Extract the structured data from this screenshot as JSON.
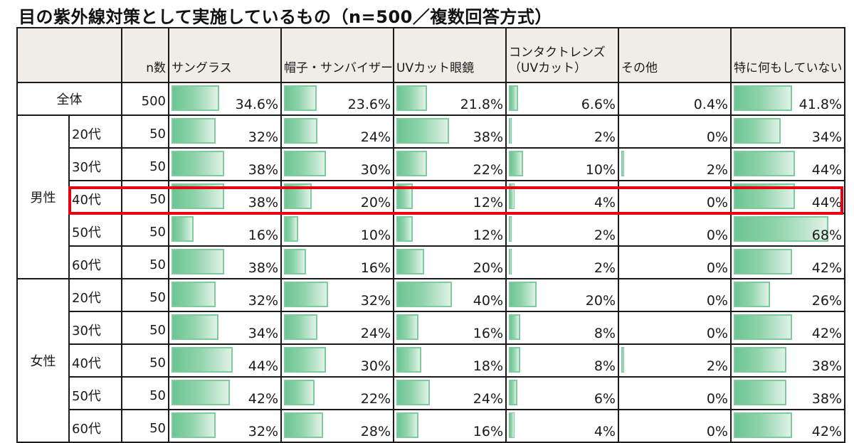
{
  "title": "目の紫外線対策として実施しているもの（n=500／複数回答方式）",
  "header": {
    "n_label": "n数",
    "columns": [
      "サングラス",
      "帽子・サンバイザー",
      "UVカット眼鏡",
      "コンタクトレンズ\n（UVカット）",
      "その他",
      "特に何もしていない"
    ],
    "column_lines": [
      [
        "サングラス"
      ],
      [
        "帽子・サンバイザー"
      ],
      [
        "UVカット眼鏡"
      ],
      [
        "コンタクトレンズ",
        "（UVカット）"
      ],
      [
        "その他"
      ],
      [
        "特に何もしていない"
      ]
    ]
  },
  "total": {
    "label": "全体",
    "n": "500",
    "values": [
      "34.6%",
      "23.6%",
      "21.8%",
      "6.6%",
      "0.4%",
      "41.8%"
    ],
    "numeric": [
      34.6,
      23.6,
      21.8,
      6.6,
      0.4,
      41.8
    ]
  },
  "groups": [
    {
      "label": "男性",
      "rows": [
        {
          "age": "20代",
          "n": "50",
          "values": [
            "32%",
            "24%",
            "38%",
            "2%",
            "0%",
            "34%"
          ],
          "numeric": [
            32,
            24,
            38,
            2,
            0,
            34
          ]
        },
        {
          "age": "30代",
          "n": "50",
          "values": [
            "38%",
            "30%",
            "22%",
            "10%",
            "2%",
            "44%"
          ],
          "numeric": [
            38,
            30,
            22,
            10,
            2,
            44
          ]
        },
        {
          "age": "40代",
          "n": "50",
          "values": [
            "38%",
            "20%",
            "12%",
            "4%",
            "0%",
            "44%"
          ],
          "numeric": [
            38,
            20,
            12,
            4,
            0,
            44
          ]
        },
        {
          "age": "50代",
          "n": "50",
          "values": [
            "16%",
            "10%",
            "12%",
            "2%",
            "0%",
            "68%"
          ],
          "numeric": [
            16,
            10,
            12,
            2,
            0,
            68
          ],
          "highlighted": true
        },
        {
          "age": "60代",
          "n": "50",
          "values": [
            "38%",
            "16%",
            "20%",
            "2%",
            "0%",
            "42%"
          ],
          "numeric": [
            38,
            16,
            20,
            2,
            0,
            42
          ]
        }
      ]
    },
    {
      "label": "女性",
      "rows": [
        {
          "age": "20代",
          "n": "50",
          "values": [
            "32%",
            "32%",
            "40%",
            "20%",
            "0%",
            "26%"
          ],
          "numeric": [
            32,
            32,
            40,
            20,
            0,
            26
          ]
        },
        {
          "age": "30代",
          "n": "50",
          "values": [
            "34%",
            "24%",
            "16%",
            "8%",
            "0%",
            "42%"
          ],
          "numeric": [
            34,
            24,
            16,
            8,
            0,
            42
          ]
        },
        {
          "age": "40代",
          "n": "50",
          "values": [
            "44%",
            "30%",
            "18%",
            "8%",
            "2%",
            "38%"
          ],
          "numeric": [
            44,
            30,
            18,
            8,
            2,
            38
          ]
        },
        {
          "age": "50代",
          "n": "50",
          "values": [
            "42%",
            "22%",
            "24%",
            "6%",
            "0%",
            "38%"
          ],
          "numeric": [
            42,
            22,
            24,
            6,
            0,
            38
          ]
        },
        {
          "age": "60代",
          "n": "50",
          "values": [
            "32%",
            "28%",
            "16%",
            "4%",
            "0%",
            "42%"
          ],
          "numeric": [
            32,
            28,
            16,
            4,
            0,
            42
          ]
        }
      ]
    }
  ],
  "colors": {
    "bar_start": "#6cc593",
    "bar_end": "#dff2e6",
    "bar_border": "#7ecb9f",
    "header_bg": "#f0ede7",
    "highlight": "#e60012",
    "grid": "#1a1a1a"
  },
  "chart_data": {
    "type": "table",
    "title": "目の紫外線対策として実施しているもの（n=500／複数回答方式）",
    "xlabel": "",
    "ylabel": "",
    "unit": "%",
    "columns": [
      "サングラス",
      "帽子・サンバイザー",
      "UVカット眼鏡",
      "コンタクトレンズ（UVカット）",
      "その他",
      "特に何もしていない"
    ],
    "categories": [
      "全体",
      "男性20代",
      "男性30代",
      "男性40代",
      "男性50代",
      "男性60代",
      "女性20代",
      "女性30代",
      "女性40代",
      "女性50代",
      "女性60代"
    ],
    "n": [
      500,
      50,
      50,
      50,
      50,
      50,
      50,
      50,
      50,
      50,
      50
    ],
    "series": [
      {
        "name": "サングラス",
        "values": [
          34.6,
          32,
          38,
          38,
          16,
          38,
          32,
          34,
          44,
          42,
          32
        ]
      },
      {
        "name": "帽子・サンバイザー",
        "values": [
          23.6,
          24,
          30,
          20,
          10,
          16,
          32,
          24,
          30,
          22,
          28
        ]
      },
      {
        "name": "UVカット眼鏡",
        "values": [
          21.8,
          38,
          22,
          12,
          12,
          20,
          40,
          16,
          18,
          24,
          16
        ]
      },
      {
        "name": "コンタクトレンズ（UVカット）",
        "values": [
          6.6,
          2,
          10,
          4,
          2,
          2,
          20,
          8,
          8,
          6,
          4
        ]
      },
      {
        "name": "その他",
        "values": [
          0.4,
          0,
          2,
          0,
          0,
          0,
          0,
          0,
          2,
          0,
          0
        ]
      },
      {
        "name": "特に何もしていない",
        "values": [
          41.8,
          34,
          44,
          44,
          68,
          42,
          26,
          42,
          38,
          38,
          42
        ]
      }
    ],
    "highlighted_row": "男性50代",
    "embedded_bars": true
  }
}
